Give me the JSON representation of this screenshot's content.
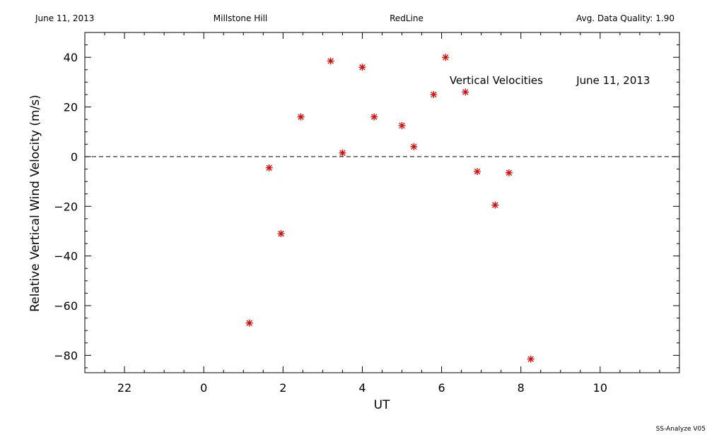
{
  "header": {
    "date": "June 11, 2013",
    "site": "Millstone Hill",
    "instrument": "RedLine",
    "quality": "Avg. Data Quality: 1.90"
  },
  "footer": {
    "software": "SS-Analyze V05"
  },
  "chart_data": {
    "type": "scatter",
    "xlabel": "UT",
    "ylabel": "Relative Vertical Wind Velocity (m/s)",
    "xlim": [
      21,
      36
    ],
    "ylim": [
      -87,
      50
    ],
    "x_major_ticks": [
      22,
      24,
      26,
      28,
      30,
      32,
      34
    ],
    "x_tick_labels": [
      "22",
      "0",
      "2",
      "4",
      "6",
      "8",
      "10"
    ],
    "y_major_ticks": [
      -80,
      -60,
      -40,
      -20,
      0,
      20,
      40
    ],
    "y_tick_labels": [
      "−80",
      "−60",
      "−40",
      "−20",
      "0",
      "20",
      "40"
    ],
    "reference_line": {
      "y": 0,
      "style": "dashed"
    },
    "annotations": [
      {
        "text": "Vertical Velocities",
        "x": 30.2,
        "y": 31
      },
      {
        "text": "June 11, 2013",
        "x": 33.4,
        "y": 31
      }
    ],
    "marker": "asterisk",
    "marker_color": "#e00000",
    "points": [
      {
        "x": 25.15,
        "y": -67
      },
      {
        "x": 25.65,
        "y": -4.5
      },
      {
        "x": 25.95,
        "y": -31
      },
      {
        "x": 26.45,
        "y": 16
      },
      {
        "x": 27.2,
        "y": 38.5
      },
      {
        "x": 27.5,
        "y": 1.5
      },
      {
        "x": 28.0,
        "y": 36
      },
      {
        "x": 28.3,
        "y": 16
      },
      {
        "x": 29.0,
        "y": 12.5
      },
      {
        "x": 29.3,
        "y": 4
      },
      {
        "x": 29.8,
        "y": 25
      },
      {
        "x": 30.1,
        "y": 40
      },
      {
        "x": 30.6,
        "y": 26
      },
      {
        "x": 30.9,
        "y": -6
      },
      {
        "x": 31.35,
        "y": -19.5
      },
      {
        "x": 31.7,
        "y": -6.5
      },
      {
        "x": 32.25,
        "y": -81.5
      }
    ]
  }
}
